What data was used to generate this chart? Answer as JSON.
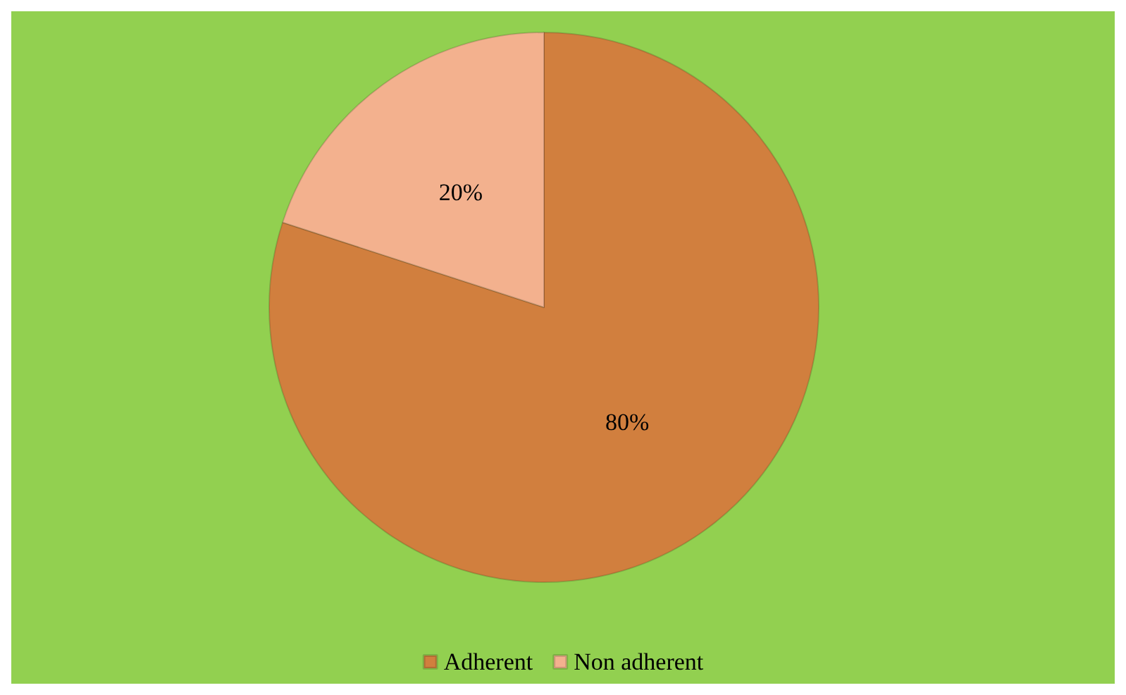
{
  "chart_data": {
    "type": "pie",
    "categories": [
      "Adherent",
      "Non adherent"
    ],
    "values": [
      80,
      20
    ],
    "colors": [
      "#d17f3e",
      "#f3b18e"
    ],
    "value_labels": [
      "80%",
      "20%"
    ],
    "legend": "bottom"
  }
}
